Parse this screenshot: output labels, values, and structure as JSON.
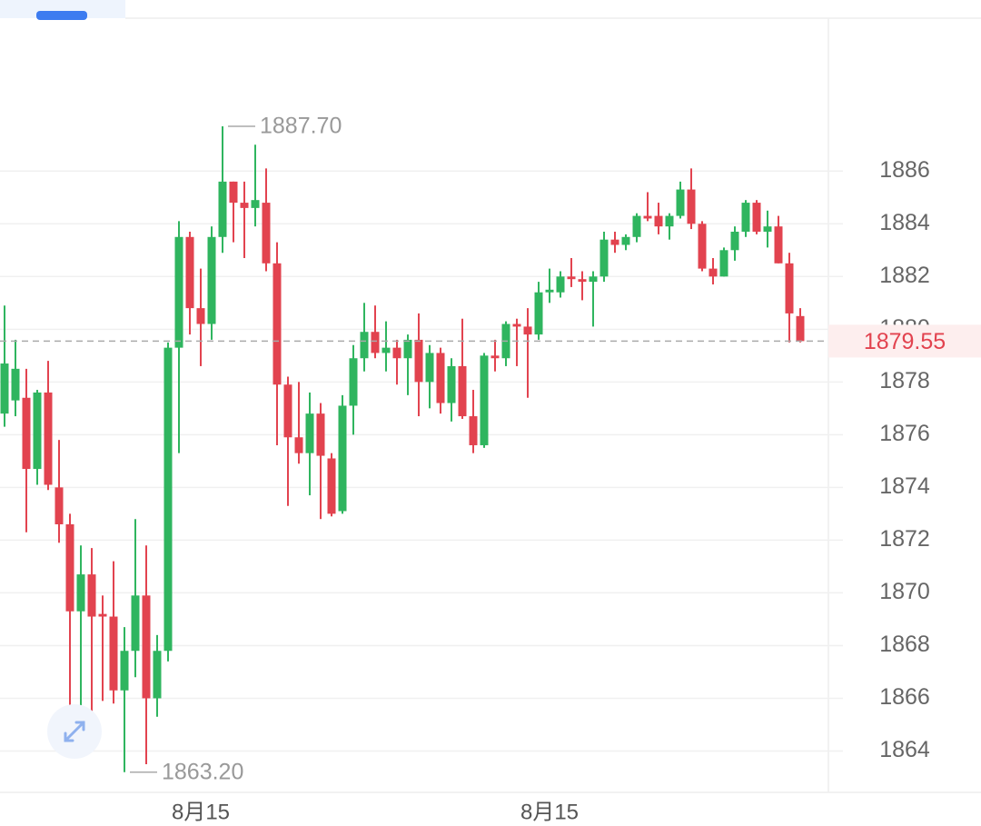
{
  "chart_data": {
    "type": "candlestick",
    "categories": [
      null,
      null,
      null,
      null,
      null,
      null,
      null,
      null,
      null,
      null,
      null,
      null,
      null,
      null,
      null,
      null,
      null,
      null,
      "8月15",
      null,
      null,
      null,
      null,
      null,
      null,
      null,
      null,
      null,
      null,
      null,
      null,
      null,
      null,
      null,
      null,
      null,
      null,
      null,
      null,
      null,
      null,
      null,
      null,
      null,
      null,
      null,
      null,
      null,
      null,
      null,
      "8月15",
      null,
      null,
      null,
      null,
      null,
      null,
      null,
      null,
      null,
      null,
      null,
      null,
      null,
      null,
      null,
      null,
      null,
      null,
      null,
      null,
      null,
      null,
      null
    ],
    "open": [
      1876.8,
      1877.3,
      1877.4,
      1874.7,
      1877.6,
      1874.0,
      1872.6,
      1869.3,
      1870.7,
      1869.2,
      1869.1,
      1866.3,
      1867.8,
      1869.9,
      1866.0,
      1867.8,
      1879.3,
      1883.5,
      1880.8,
      1880.2,
      1883.5,
      1885.6,
      1884.8,
      1884.6,
      1884.8,
      1882.5,
      1877.9,
      1875.9,
      1875.3,
      1876.8,
      1875.1,
      1873.1,
      1877.1,
      1878.9,
      1879.9,
      1879.1,
      1879.3,
      1878.9,
      1879.6,
      1878.0,
      1879.1,
      1877.2,
      1878.6,
      1876.7,
      1875.6,
      1879.0,
      1878.9,
      1880.2,
      1880.1,
      1879.8,
      1881.4,
      1881.4,
      1882.0,
      1881.9,
      1881.8,
      1882.0,
      1883.4,
      1883.2,
      1883.5,
      1884.3,
      1884.3,
      1883.9,
      1884.3,
      1885.3,
      1884.0,
      1882.3,
      1882.0,
      1883.0,
      1883.7,
      1884.8,
      1883.7,
      1883.9,
      1882.5,
      1880.5
    ],
    "high": [
      1880.9,
      1879.6,
      1878.5,
      1877.7,
      1878.8,
      1875.8,
      1873.0,
      1871.8,
      1871.7,
      1869.9,
      1871.2,
      1868.7,
      1872.8,
      1871.8,
      1868.4,
      1879.5,
      1884.1,
      1883.7,
      1882.3,
      1883.9,
      1887.7,
      1885.6,
      1885.6,
      1887.0,
      1886.1,
      1883.3,
      1878.2,
      1878.0,
      1877.6,
      1877.2,
      1875.3,
      1877.5,
      1879.4,
      1881.0,
      1880.9,
      1880.3,
      1879.6,
      1879.8,
      1880.6,
      1879.4,
      1879.3,
      1878.9,
      1880.4,
      1877.7,
      1879.1,
      1879.6,
      1880.3,
      1880.4,
      1880.8,
      1881.8,
      1882.3,
      1882.2,
      1882.7,
      1882.2,
      1882.2,
      1883.7,
      1883.7,
      1883.6,
      1884.4,
      1885.2,
      1884.8,
      1884.4,
      1885.6,
      1886.1,
      1884.1,
      1882.7,
      1883.1,
      1883.9,
      1884.9,
      1884.9,
      1884.5,
      1884.3,
      1882.9,
      1880.8
    ],
    "low": [
      1876.3,
      1876.7,
      1872.3,
      1874.1,
      1873.9,
      1871.9,
      1865.1,
      1865.3,
      1865.4,
      1865.9,
      1865.8,
      1863.2,
      1866.8,
      1863.5,
      1865.3,
      1867.4,
      1875.3,
      1879.8,
      1878.6,
      1879.6,
      1882.9,
      1883.3,
      1882.7,
      1883.9,
      1882.2,
      1875.6,
      1873.3,
      1874.9,
      1873.7,
      1872.8,
      1872.9,
      1873.0,
      1876.0,
      1878.4,
      1878.9,
      1878.4,
      1877.9,
      1877.5,
      1876.7,
      1877.0,
      1876.8,
      1876.5,
      1876.6,
      1875.3,
      1875.5,
      1878.4,
      1878.6,
      1878.6,
      1877.4,
      1879.6,
      1881.0,
      1881.2,
      1881.6,
      1881.1,
      1880.1,
      1881.8,
      1882.9,
      1883.0,
      1883.3,
      1884.1,
      1883.6,
      1883.4,
      1884.2,
      1883.8,
      1882.2,
      1881.7,
      1882.0,
      1882.6,
      1883.5,
      1883.6,
      1883.1,
      1882.5,
      1879.5,
      1879.5
    ],
    "close": [
      1878.7,
      1878.5,
      1874.7,
      1877.6,
      1874.1,
      1872.6,
      1869.3,
      1870.7,
      1869.1,
      1869.1,
      1866.3,
      1867.8,
      1869.9,
      1866.0,
      1867.8,
      1879.3,
      1883.5,
      1880.8,
      1880.2,
      1883.5,
      1885.6,
      1884.8,
      1884.6,
      1884.9,
      1882.5,
      1877.9,
      1875.9,
      1875.3,
      1876.8,
      1875.2,
      1873.0,
      1877.1,
      1878.9,
      1879.9,
      1879.1,
      1879.3,
      1878.9,
      1879.6,
      1878.0,
      1879.1,
      1877.2,
      1878.6,
      1876.7,
      1875.6,
      1879.0,
      1878.9,
      1880.2,
      1880.1,
      1879.8,
      1881.4,
      1881.5,
      1882.0,
      1881.9,
      1881.8,
      1882.0,
      1883.4,
      1883.2,
      1883.5,
      1884.3,
      1884.2,
      1883.9,
      1884.3,
      1885.3,
      1884.0,
      1882.3,
      1882.0,
      1883.0,
      1883.7,
      1884.8,
      1883.7,
      1883.9,
      1882.5,
      1880.6,
      1879.55
    ],
    "up_color": "#2fb55f",
    "down_color": "#e2434f",
    "ylim": [
      1862.5,
      1891.8
    ],
    "yticks": [
      1864,
      1866,
      1868,
      1870,
      1872,
      1874,
      1876,
      1878,
      1880,
      1882,
      1884,
      1886
    ],
    "grid": true,
    "annotations": [
      {
        "value": 1887.7,
        "label": "1887.70"
      },
      {
        "value": 1863.2,
        "label": "1863.20"
      }
    ]
  }
}
